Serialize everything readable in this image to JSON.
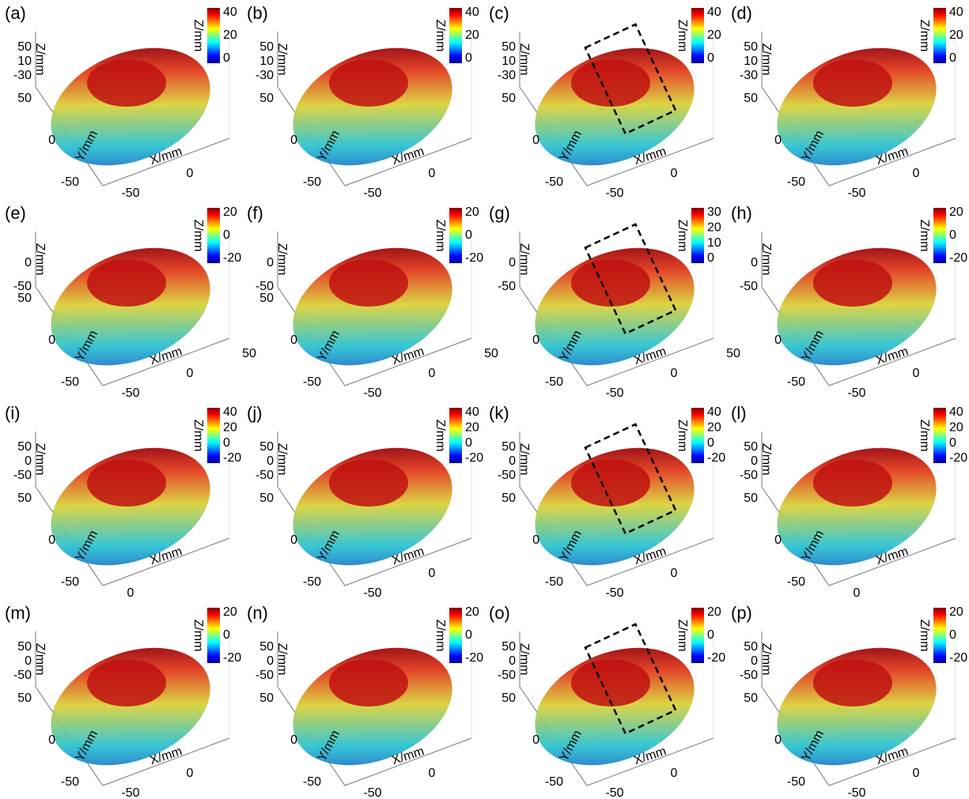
{
  "panels": [
    {
      "label": "(a)",
      "z_label": "Z/mm",
      "y_label": "Y/mm",
      "x_label": "X/mm",
      "colorbar_ticks": [
        "40",
        "20",
        "0"
      ],
      "z_ticks": [
        "50",
        "10",
        "-30"
      ],
      "y_ticks": [
        "50",
        "0",
        "-50"
      ],
      "x_ticks": [
        "-50",
        "0"
      ]
    },
    {
      "label": "(b)",
      "z_label": "Z/mm",
      "y_label": "Y/mm",
      "x_label": "X/mm",
      "colorbar_ticks": [
        "40",
        "20",
        "0"
      ],
      "z_ticks": [
        "50",
        "10",
        "-30"
      ],
      "y_ticks": [
        "50",
        "0",
        "-50"
      ],
      "x_ticks": [
        "-50",
        "0"
      ]
    },
    {
      "label": "(c)",
      "z_label": "Z/mm",
      "y_label": "Y/mm",
      "x_label": "X/mm",
      "colorbar_ticks": [
        "40",
        "20",
        "0"
      ],
      "z_ticks": [
        "50",
        "10",
        "-30"
      ],
      "y_ticks": [
        "50",
        "0",
        "-50"
      ],
      "x_ticks": [
        "-50",
        "0"
      ]
    },
    {
      "label": "(d)",
      "z_label": "Z/mm",
      "y_label": "Y/mm",
      "x_label": "X/mm",
      "colorbar_ticks": [
        "40",
        "20",
        "0"
      ],
      "z_ticks": [
        "50",
        "10",
        "-30"
      ],
      "y_ticks": [
        "50",
        "0",
        "-50"
      ],
      "x_ticks": [
        "-50",
        "0"
      ]
    },
    {
      "label": "(e)",
      "z_label": "Z/mm",
      "y_label": "Y/mm",
      "x_label": "X/mm",
      "colorbar_ticks": [
        "20",
        "0",
        "-20"
      ],
      "z_ticks": [
        "0",
        "-50"
      ],
      "y_ticks": [
        "50",
        "0",
        "-50"
      ],
      "x_ticks": [
        "-50",
        "0",
        "50"
      ]
    },
    {
      "label": "(f)",
      "z_label": "Z/mm",
      "y_label": "Y/mm",
      "x_label": "X/mm",
      "colorbar_ticks": [
        "20",
        "0",
        "-20"
      ],
      "z_ticks": [
        "0",
        "-50"
      ],
      "y_ticks": [
        "50",
        "0",
        "-50"
      ],
      "x_ticks": [
        "-50",
        "0",
        "50"
      ]
    },
    {
      "label": "(g)",
      "z_label": "Z/mm",
      "y_label": "Y/mm",
      "x_label": "X/mm",
      "colorbar_ticks": [
        "30",
        "20",
        "10",
        "0"
      ],
      "z_ticks": [
        "0",
        "-50"
      ],
      "y_ticks": [
        "0",
        "-50"
      ],
      "x_ticks": [
        "-50",
        "0",
        "50"
      ]
    },
    {
      "label": "(h)",
      "z_label": "Z/mm",
      "y_label": "Y/mm",
      "x_label": "X/mm",
      "colorbar_ticks": [
        "20",
        "0",
        "-20"
      ],
      "z_ticks": [
        "0",
        "-50"
      ],
      "y_ticks": [
        "0",
        "-50"
      ],
      "x_ticks": [
        "-50",
        "0"
      ]
    },
    {
      "label": "(i)",
      "z_label": "Z/mm",
      "y_label": "Y/mm",
      "x_label": "X/mm",
      "colorbar_ticks": [
        "40",
        "20",
        "0",
        "-20"
      ],
      "z_ticks": [
        "50",
        "0",
        "-50"
      ],
      "y_ticks": [
        "50",
        "0",
        "-50"
      ],
      "x_ticks": [
        "0"
      ]
    },
    {
      "label": "(j)",
      "z_label": "Z/mm",
      "y_label": "Y/mm",
      "x_label": "X/mm",
      "colorbar_ticks": [
        "40",
        "20",
        "0",
        "-20"
      ],
      "z_ticks": [
        "50",
        "0",
        "-50"
      ],
      "y_ticks": [
        "50",
        "0",
        "-50"
      ],
      "x_ticks": [
        "-50",
        "0"
      ]
    },
    {
      "label": "(k)",
      "z_label": "Z/mm",
      "y_label": "Y/mm",
      "x_label": "X/mm",
      "colorbar_ticks": [
        "40",
        "20",
        "0",
        "-20"
      ],
      "z_ticks": [
        "50",
        "0",
        "-50"
      ],
      "y_ticks": [
        "50",
        "0",
        "-50"
      ],
      "x_ticks": [
        "-50",
        "0"
      ]
    },
    {
      "label": "(l)",
      "z_label": "Z/mm",
      "y_label": "Y/mm",
      "x_label": "X/mm",
      "colorbar_ticks": [
        "40",
        "20",
        "0",
        "-20"
      ],
      "z_ticks": [
        "50",
        "0",
        "-50"
      ],
      "y_ticks": [
        "50",
        "0",
        "-50"
      ],
      "x_ticks": [
        "0"
      ]
    },
    {
      "label": "(m)",
      "z_label": "Z/mm",
      "y_label": "Y/mm",
      "x_label": "X/mm",
      "colorbar_ticks": [
        "20",
        "0",
        "-20"
      ],
      "z_ticks": [
        "50",
        "0",
        "-50"
      ],
      "y_ticks": [
        "50",
        "0",
        "-50"
      ],
      "x_ticks": [
        "-50",
        "0"
      ]
    },
    {
      "label": "(n)",
      "z_label": "Z/mm",
      "y_label": "Y/mm",
      "x_label": "X/mm",
      "colorbar_ticks": [
        "20",
        "0",
        "-20"
      ],
      "z_ticks": [
        "50",
        "0",
        "-50"
      ],
      "y_ticks": [
        "50",
        "0",
        "-50"
      ],
      "x_ticks": [
        "-50",
        "0"
      ]
    },
    {
      "label": "(o)",
      "z_label": "Z/mm",
      "y_label": "Y/mm",
      "x_label": "X/mm",
      "colorbar_ticks": [
        "20",
        "0",
        "-20"
      ],
      "z_ticks": [
        "50",
        "0",
        "-50"
      ],
      "y_ticks": [
        "50",
        "0",
        "-50"
      ],
      "x_ticks": [
        "-50",
        "0"
      ]
    },
    {
      "label": "(p)",
      "z_label": "Z/mm",
      "y_label": "Y/mm",
      "x_label": "X/mm",
      "colorbar_ticks": [
        "20",
        "0",
        "-20"
      ],
      "z_ticks": [
        "50",
        "0",
        "-50"
      ],
      "y_ticks": [
        "50",
        "0",
        "-50"
      ],
      "x_ticks": [
        "-50",
        "0"
      ]
    }
  ]
}
